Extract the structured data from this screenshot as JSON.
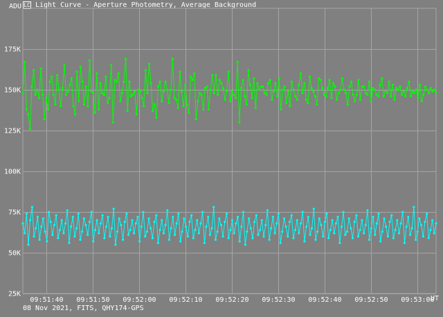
{
  "window": {
    "icon_label": "LC",
    "title": "Light Curve - Aperture Photometry, Average Background",
    "footer": "08 Nov 2021, FITS, QHY174-GPS"
  },
  "colors": {
    "background": "#808080",
    "grid": "#a6a6a6",
    "axes_text": "#ffffff",
    "target": "#00ff00",
    "comparison": "#00ffff"
  },
  "chart_data": {
    "type": "line",
    "title": "Light Curve - Aperture Photometry, Average Background",
    "xlabel": "UT",
    "ylabel": "ADU",
    "y_axis_unit_label": "ADU",
    "x_axis_unit_label": "UT",
    "ylim": [
      25000,
      200000
    ],
    "xlim": [
      "09:51:35",
      "09:53:04"
    ],
    "grid": true,
    "x_ticks": [
      "09:51:40",
      "09:51:50",
      "09:52:00",
      "09:52:10",
      "09:52:20",
      "09:52:30",
      "09:52:40",
      "09:52:50",
      "09:53:00"
    ],
    "y_ticks": [
      {
        "value": 25000,
        "label": "25K"
      },
      {
        "value": 50000,
        "label": "50K"
      },
      {
        "value": 75000,
        "label": "75K"
      },
      {
        "value": 100000,
        "label": "100K"
      },
      {
        "value": 125000,
        "label": "125K"
      },
      {
        "value": 150000,
        "label": "150K"
      },
      {
        "value": 175000,
        "label": "175K"
      }
    ],
    "series": [
      {
        "color": "#00ff00",
        "x_start": "09:51:35",
        "x_end": "09:53:04",
        "values": [
          148000,
          167000,
          138000,
          135000,
          126000,
          152000,
          162000,
          147000,
          150000,
          145000,
          163000,
          147000,
          132000,
          145000,
          138000,
          155000,
          158000,
          147000,
          141000,
          159000,
          150000,
          140000,
          151000,
          165000,
          147000,
          149000,
          153000,
          157000,
          140000,
          135000,
          161000,
          143000,
          164000,
          155000,
          141000,
          152000,
          140000,
          168000,
          149000,
          148000,
          136000,
          160000,
          138000,
          154000,
          148000,
          147000,
          158000,
          142000,
          145000,
          165000,
          130000,
          156000,
          155000,
          160000,
          143000,
          148000,
          155000,
          169000,
          137000,
          155000,
          146000,
          147000,
          149000,
          135000,
          150000,
          149000,
          145000,
          140000,
          162000,
          148000,
          166000,
          154000,
          137000,
          141000,
          133000,
          152000,
          155000,
          143000,
          149000,
          155000,
          150000,
          142000,
          150000,
          169000,
          145000,
          144000,
          139000,
          161000,
          149000,
          140000,
          153000,
          141000,
          136000,
          158000,
          156000,
          160000,
          132000,
          143000,
          148000,
          147000,
          138000,
          151000,
          152000,
          138000,
          150000,
          159000,
          148000,
          159000,
          147000,
          156000,
          154000,
          151000,
          144000,
          149000,
          161000,
          143000,
          149000,
          147000,
          145000,
          167000,
          130000,
          151000,
          156000,
          146000,
          141000,
          162000,
          153000,
          145000,
          157000,
          139000,
          154000,
          150000,
          152000,
          152000,
          148000,
          147000,
          154000,
          156000,
          144000,
          149000,
          154000,
          146000,
          157000,
          138000,
          150000,
          152000,
          142000,
          149000,
          140000,
          155000,
          150000,
          146000,
          144000,
          153000,
          160000,
          148000,
          154000,
          144000,
          142000,
          158000,
          151000,
          149000,
          146000,
          141000,
          157000,
          156000,
          151000,
          147000,
          146000,
          151000,
          156000,
          145000,
          154000,
          152000,
          144000,
          148000,
          150000,
          157000,
          150000,
          148000,
          141000,
          152000,
          155000,
          147000,
          143000,
          147000,
          156000,
          144000,
          152000,
          152000,
          148000,
          147000,
          155000,
          143000,
          151000,
          150000,
          147000,
          146000,
          153000,
          157000,
          146000,
          149000,
          148000,
          155000,
          146000,
          153000,
          144000,
          151000,
          150000,
          152000,
          147000,
          149000,
          146000,
          151000,
          155000,
          146000,
          149000,
          148000,
          150000,
          145000,
          153000,
          143000,
          147000,
          152000,
          150000,
          148000,
          151000,
          149000,
          150000,
          148000
        ],
        "points_drawn": 240
      },
      {
        "color": "#00ffff",
        "x_start": "09:51:35",
        "x_end": "09:53:04",
        "values": [
          68000,
          62000,
          74000,
          55000,
          70000,
          78000,
          60000,
          65000,
          72000,
          58000,
          66000,
          71000,
          63000,
          57000,
          75000,
          69000,
          61000,
          67000,
          73000,
          59000,
          64000,
          70000,
          62000,
          68000,
          76000,
          56000,
          66000,
          72000,
          60000,
          65000,
          74000,
          58000,
          63000,
          71000,
          67000,
          61000,
          69000,
          75000,
          57000,
          64000,
          70000,
          62000,
          68000,
          73000,
          59000,
          66000,
          72000,
          60000,
          65000,
          77000,
          55000,
          63000,
          71000,
          67000,
          58000,
          69000,
          74000,
          61000,
          64000,
          70000,
          62000,
          68000,
          72000,
          57000,
          66000,
          75000,
          60000,
          63000,
          71000,
          65000,
          59000,
          69000,
          73000,
          56000,
          64000,
          70000,
          62000,
          67000,
          76000,
          58000,
          65000,
          72000,
          61000,
          68000,
          74000,
          57000,
          63000,
          71000,
          66000,
          60000,
          69000,
          73000,
          59000,
          64000,
          70000,
          62000,
          68000,
          75000,
          56000,
          66000,
          72000,
          61000,
          65000,
          78000,
          58000,
          63000,
          71000,
          67000,
          60000,
          69000,
          74000,
          59000,
          64000,
          70000,
          62000,
          68000,
          72000,
          57000,
          66000,
          75000,
          55000,
          63000,
          71000,
          65000,
          59000,
          69000,
          73000,
          61000,
          64000,
          70000,
          60000,
          67000,
          76000,
          58000,
          65000,
          72000,
          62000,
          68000,
          74000,
          56000,
          63000,
          71000,
          66000,
          60000,
          69000,
          73000,
          59000,
          64000,
          70000,
          62000,
          68000,
          75000,
          57000,
          66000,
          72000,
          61000,
          65000,
          77000,
          58000,
          63000,
          71000,
          67000,
          60000,
          69000,
          74000,
          59000,
          64000,
          70000,
          62000,
          68000,
          72000,
          56000,
          66000,
          75000,
          61000,
          63000,
          71000,
          65000,
          59000,
          69000,
          73000,
          60000,
          64000,
          70000,
          62000,
          67000,
          76000,
          58000,
          65000,
          72000,
          61000,
          68000,
          74000,
          57000,
          63000,
          71000,
          66000,
          60000,
          69000,
          73000,
          59000,
          64000,
          70000,
          62000,
          68000,
          75000,
          56000,
          66000,
          72000,
          61000,
          65000,
          78000,
          58000,
          63000,
          71000,
          67000,
          60000,
          69000,
          74000,
          59000,
          64000,
          70000,
          62000,
          68000
        ],
        "points_drawn": 240
      }
    ]
  }
}
